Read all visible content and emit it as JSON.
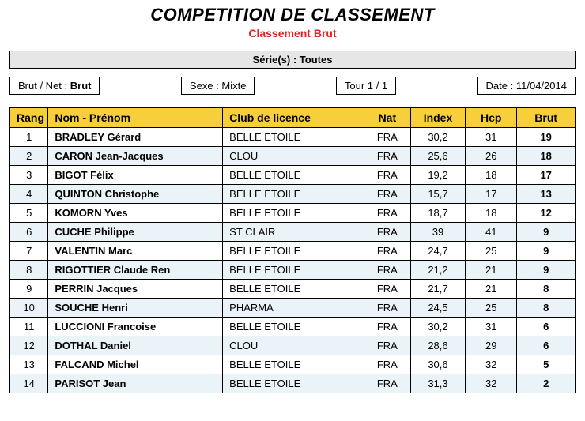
{
  "header": {
    "title": "COMPETITION DE CLASSEMENT",
    "subtitle": "Classement Brut",
    "series_label": "Série(s) : Toutes"
  },
  "meta": {
    "brutnet_label": "Brut / Net :",
    "brutnet_value": "Brut",
    "sex_label": "Sexe :",
    "sex_value": "Mixte",
    "round_label": "Tour 1 / 1",
    "date_label": "Date :",
    "date_value": "11/04/2014"
  },
  "table": {
    "columns": {
      "rank": "Rang",
      "name": "Nom - Prénom",
      "club": "Club de licence",
      "nat": "Nat",
      "index": "Index",
      "hcp": "Hcp",
      "brut": "Brut"
    },
    "rows": [
      {
        "rank": "1",
        "name": "BRADLEY Gérard",
        "club": "BELLE ETOILE",
        "nat": "FRA",
        "index": "30,2",
        "hcp": "31",
        "brut": "19"
      },
      {
        "rank": "2",
        "name": "CARON Jean-Jacques",
        "club": "CLOU",
        "nat": "FRA",
        "index": "25,6",
        "hcp": "26",
        "brut": "18"
      },
      {
        "rank": "3",
        "name": "BIGOT Félix",
        "club": "BELLE ETOILE",
        "nat": "FRA",
        "index": "19,2",
        "hcp": "18",
        "brut": "17"
      },
      {
        "rank": "4",
        "name": "QUINTON Christophe",
        "club": "BELLE ETOILE",
        "nat": "FRA",
        "index": "15,7",
        "hcp": "17",
        "brut": "13"
      },
      {
        "rank": "5",
        "name": "KOMORN Yves",
        "club": "BELLE ETOILE",
        "nat": "FRA",
        "index": "18,7",
        "hcp": "18",
        "brut": "12"
      },
      {
        "rank": "6",
        "name": "CUCHE Philippe",
        "club": "ST CLAIR",
        "nat": "FRA",
        "index": "39",
        "hcp": "41",
        "brut": "9"
      },
      {
        "rank": "7",
        "name": "VALENTIN Marc",
        "club": "BELLE ETOILE",
        "nat": "FRA",
        "index": "24,7",
        "hcp": "25",
        "brut": "9"
      },
      {
        "rank": "8",
        "name": "RIGOTTIER Claude Ren",
        "club": "BELLE ETOILE",
        "nat": "FRA",
        "index": "21,2",
        "hcp": "21",
        "brut": "9"
      },
      {
        "rank": "9",
        "name": "PERRIN Jacques",
        "club": "BELLE ETOILE",
        "nat": "FRA",
        "index": "21,7",
        "hcp": "21",
        "brut": "8"
      },
      {
        "rank": "10",
        "name": "SOUCHE Henri",
        "club": "PHARMA",
        "nat": "FRA",
        "index": "24,5",
        "hcp": "25",
        "brut": "8"
      },
      {
        "rank": "11",
        "name": "LUCCIONI Francoise",
        "club": "BELLE ETOILE",
        "nat": "FRA",
        "index": "30,2",
        "hcp": "31",
        "brut": "6"
      },
      {
        "rank": "12",
        "name": "DOTHAL Daniel",
        "club": "CLOU",
        "nat": "FRA",
        "index": "28,6",
        "hcp": "29",
        "brut": "6"
      },
      {
        "rank": "13",
        "name": "FALCAND Michel",
        "club": "BELLE ETOILE",
        "nat": "FRA",
        "index": "30,6",
        "hcp": "32",
        "brut": "5"
      },
      {
        "rank": "14",
        "name": "PARISOT Jean",
        "club": "BELLE ETOILE",
        "nat": "FRA",
        "index": "31,3",
        "hcp": "32",
        "brut": "2"
      }
    ]
  },
  "style": {
    "header_bg": "#f7cf3a",
    "alt_row_bg": "#eaf3f7",
    "subtitle_color": "#d22",
    "border_color": "#000000",
    "font_family": "Arial, Helvetica, sans-serif"
  }
}
